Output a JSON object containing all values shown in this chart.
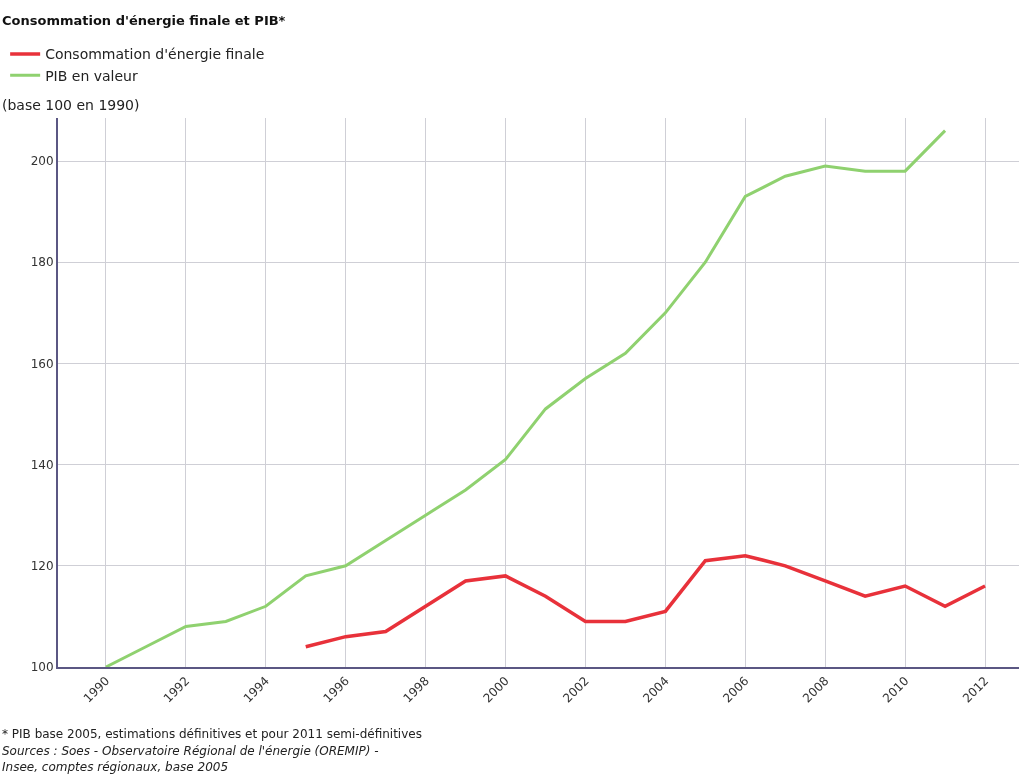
{
  "chart_data": {
    "type": "line",
    "title": "Consommation d'énergie finale et PIB*",
    "ylabel": "(base 100 en 1990)",
    "x": [
      1990,
      1991,
      1992,
      1993,
      1994,
      1995,
      1996,
      1997,
      1998,
      1999,
      2000,
      2001,
      2002,
      2003,
      2004,
      2005,
      2006,
      2007,
      2008,
      2009,
      2010,
      2011,
      2012
    ],
    "series": [
      {
        "name": "Consommation d'énergie finale",
        "color": "#e8313a",
        "values": [
          null,
          null,
          null,
          null,
          null,
          104,
          106,
          107,
          112,
          117,
          118,
          114,
          109,
          109,
          111,
          121,
          122,
          120,
          117,
          114,
          116,
          112,
          116
        ]
      },
      {
        "name": "PIB en valeur",
        "color": "#8fd16f",
        "values": [
          100,
          104,
          108,
          109,
          112,
          118,
          120,
          125,
          130,
          135,
          141,
          151,
          157,
          162,
          170,
          180,
          193,
          197,
          199,
          198,
          198,
          206,
          null
        ]
      }
    ],
    "xlim": [
      1988.8,
      2012.85
    ],
    "xticks": [
      1990,
      1992,
      1994,
      1996,
      1998,
      2000,
      2002,
      2004,
      2006,
      2008,
      2010,
      2012
    ],
    "ylim": [
      100,
      208.5
    ],
    "yticks": [
      100,
      120,
      140,
      160,
      180,
      200
    ],
    "grid": true,
    "legend": "top left",
    "marker": "none",
    "line_style": "solid",
    "annotations": [
      "* PIB base 2005, estimations définitives et pour 2011 semi-définitives",
      "Sources : Soes - Observatoire Régional de l'énergie (OREMIP) - Insee, comptes régionaux, base 2005"
    ]
  }
}
